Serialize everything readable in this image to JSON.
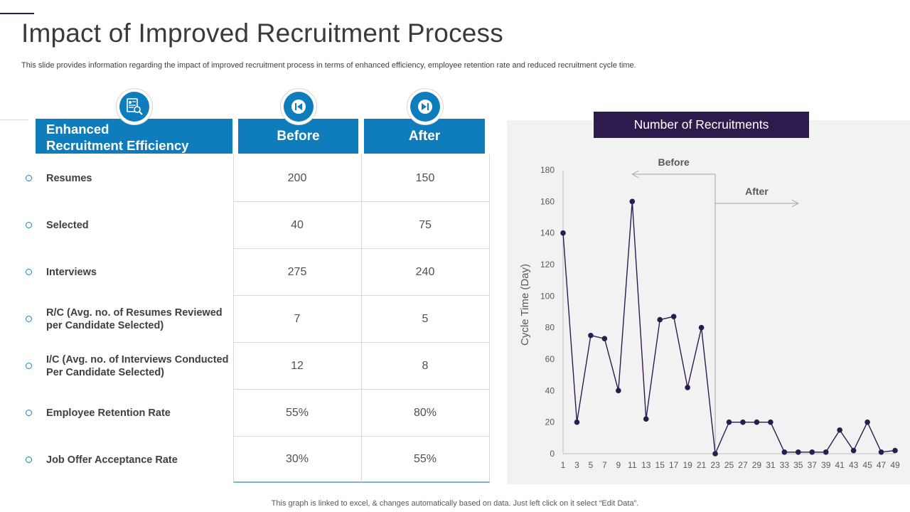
{
  "title": "Impact of Improved Recruitment Process",
  "subtitle": "This slide provides information regarding the impact of improved recruitment process in terms of enhanced efficiency, employee retention rate and reduced recruitment cycle time.",
  "table": {
    "header_line1": "Enhanced",
    "header_line2": "Recruitment Efficiency",
    "before_label": "Before",
    "after_label": "After",
    "rows": [
      {
        "label": "Resumes",
        "label2": "",
        "before": "200",
        "after": "150"
      },
      {
        "label": "Selected",
        "label2": "",
        "before": "40",
        "after": "75"
      },
      {
        "label": "Interviews",
        "label2": "",
        "before": "275",
        "after": "240"
      },
      {
        "label": "R/C (Avg. no. of Resumes Reviewed",
        "label2": "per Candidate Selected)",
        "before": "7",
        "after": "5"
      },
      {
        "label": "I/C (Avg. no. of Interviews Conducted",
        "label2": "Per Candidate Selected)",
        "before": "12",
        "after": "8"
      },
      {
        "label": "Employee Retention Rate",
        "label2": "",
        "before": "55%",
        "after": "80%"
      },
      {
        "label": "Job Offer Acceptance Rate",
        "label2": "",
        "before": "30%",
        "after": "55%"
      }
    ]
  },
  "icons": {
    "efficiency": "resume-search-icon",
    "before": "skip-back-icon",
    "after": "skip-forward-icon"
  },
  "colors": {
    "header_blue": "#0f7dbb",
    "dark_purple": "#2d1b4e",
    "line": "#2d1b4e"
  },
  "chart_data": {
    "type": "line",
    "title": "Number of Recruitments",
    "ylabel": "Cycle Time (Day)",
    "xlabel": "",
    "ylim": [
      0,
      180
    ],
    "yticks": [
      0,
      20,
      40,
      60,
      80,
      100,
      120,
      140,
      160,
      180
    ],
    "x": [
      1,
      2,
      3,
      4,
      5,
      6,
      7,
      8,
      9,
      10,
      11,
      12,
      13,
      14,
      15,
      16,
      17,
      18,
      19,
      20,
      21,
      22,
      23,
      24,
      25,
      26,
      27,
      28,
      29,
      30,
      31,
      32,
      33,
      34,
      35,
      36,
      37,
      38,
      39,
      40,
      41,
      42,
      43,
      44,
      45,
      46,
      47,
      48,
      49
    ],
    "xtick_labels": [
      "1",
      "3",
      "5",
      "7",
      "9",
      "11",
      "13",
      "15",
      "17",
      "19",
      "21",
      "23",
      "25",
      "27",
      "29",
      "31",
      "33",
      "35",
      "37",
      "39",
      "41",
      "43",
      "45",
      "47",
      "49"
    ],
    "series": [
      {
        "name": "Cycle Time",
        "points": [
          [
            1,
            140
          ],
          [
            3,
            20
          ],
          [
            5,
            75
          ],
          [
            7,
            73
          ],
          [
            9,
            40
          ],
          [
            11,
            160
          ],
          [
            13,
            22
          ],
          [
            15,
            85
          ],
          [
            17,
            87
          ],
          [
            19,
            42
          ],
          [
            21,
            80
          ],
          [
            23,
            0
          ],
          [
            25,
            20
          ],
          [
            27,
            20
          ],
          [
            29,
            20
          ],
          [
            31,
            20
          ],
          [
            33,
            1
          ],
          [
            35,
            1
          ],
          [
            37,
            1
          ],
          [
            39,
            1
          ],
          [
            41,
            15
          ],
          [
            43,
            2
          ],
          [
            45,
            20
          ],
          [
            47,
            1
          ],
          [
            49,
            2
          ]
        ]
      }
    ],
    "annotations": [
      {
        "text": "Before",
        "direction": "left",
        "x_from": 23,
        "x_to": 11
      },
      {
        "text": "After",
        "direction": "right",
        "x_from": 23,
        "x_to": 35
      }
    ],
    "divider_x": 23
  },
  "footer": "This graph is linked to excel, & changes automatically based on data. Just left click on it select “Edit Data”."
}
